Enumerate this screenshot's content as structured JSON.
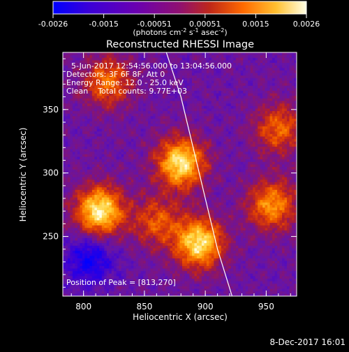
{
  "chart_data": {
    "type": "heatmap",
    "title": "Reconstructed RHESSI Image",
    "xlabel": "Heliocentric X (arcsec)",
    "ylabel": "Heliocentric Y (arcsec)",
    "xlim": [
      783,
      975
    ],
    "ylim": [
      203,
      395
    ],
    "xticks": [
      800,
      850,
      900,
      950
    ],
    "yticks": [
      250,
      300,
      350
    ],
    "colorbar": {
      "ticks": [
        "-0.0026",
        "-0.0015",
        "-0.00051",
        "0.00051",
        "0.0015",
        "0.0026"
      ],
      "range": [
        -0.0026,
        0.0026
      ],
      "units": "(photons cm<sup>-2</sup> s<sup>-1</sup> asec<sup>-2</sup>)",
      "colors": [
        "#0000ff",
        "#3a00d8",
        "#6a00b0",
        "#901070",
        "#c02818",
        "#ff6a00",
        "#ffc030",
        "#ffffe6"
      ]
    },
    "annotations": {
      "time_range": "5-Jun-2017 12:54:56.000 to 13:04:56.000",
      "detectors": "Detectors: 3F 6F 8F, Att 0",
      "energy": "Energy Range: 12.0 - 25.0 keV",
      "clean": "Clean    Total counts: 9.77E+03",
      "peak": "Position of Peak = [813,270]"
    },
    "sources": [
      {
        "x": 813,
        "y": 270,
        "level": 1.0
      },
      {
        "x": 880,
        "y": 308,
        "level": 0.95
      },
      {
        "x": 895,
        "y": 245,
        "level": 0.95
      },
      {
        "x": 820,
        "y": 372,
        "level": 0.6
      },
      {
        "x": 955,
        "y": 275,
        "level": 0.7
      },
      {
        "x": 960,
        "y": 335,
        "level": 0.55
      },
      {
        "x": 860,
        "y": 262,
        "level": 0.5
      },
      {
        "x": 805,
        "y": 232,
        "level": -0.5
      }
    ]
  },
  "footer": {
    "date": "8-Dec-2017 16:01"
  }
}
